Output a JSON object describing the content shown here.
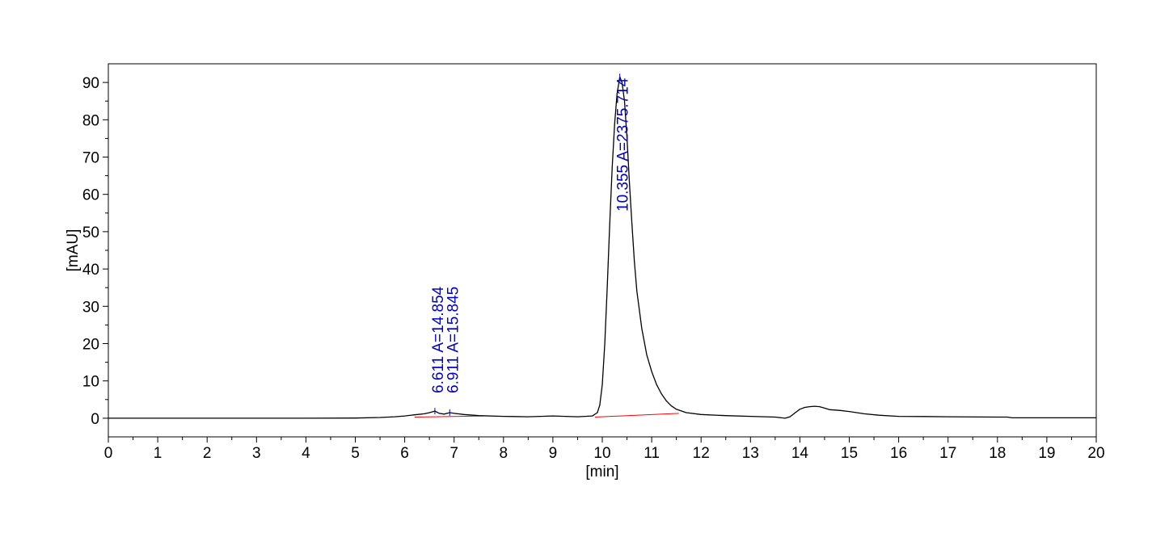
{
  "chart_data": {
    "type": "line",
    "title": "",
    "xlabel": "[min]",
    "ylabel": "[mAU]",
    "xlim": [
      0,
      20
    ],
    "ylim": [
      -5,
      95
    ],
    "x_ticks": [
      0,
      1,
      2,
      3,
      4,
      5,
      6,
      7,
      8,
      9,
      10,
      11,
      12,
      13,
      14,
      15,
      16,
      17,
      18,
      19,
      20
    ],
    "y_ticks": [
      0,
      10,
      20,
      30,
      40,
      50,
      60,
      70,
      80,
      90
    ],
    "grid": false,
    "legend": "none",
    "colors": {
      "trace": "#000000",
      "baseline": "#ff0000",
      "annotation": "#0000cc"
    },
    "series": [
      {
        "x": [
          0,
          1,
          2,
          3,
          4,
          5,
          5.5,
          5.8,
          6.0,
          6.2,
          6.4,
          6.5,
          6.611,
          6.7,
          6.8,
          6.911,
          7.0,
          7.2,
          7.5,
          8.0,
          8.5,
          9.0,
          9.5,
          9.8,
          9.9,
          9.95,
          10.0,
          10.05,
          10.1,
          10.15,
          10.2,
          10.25,
          10.3,
          10.355,
          10.4,
          10.45,
          10.5,
          10.55,
          10.6,
          10.65,
          10.7,
          10.8,
          10.9,
          11.0,
          11.1,
          11.2,
          11.3,
          11.4,
          11.5,
          11.7,
          12.0,
          12.5,
          13.0,
          13.5,
          13.7,
          13.8,
          13.9,
          14.0,
          14.1,
          14.2,
          14.3,
          14.4,
          14.5,
          14.6,
          14.8,
          15.0,
          15.3,
          15.6,
          16.0,
          16.5,
          17.0,
          18.0,
          18.2,
          18.3,
          19.0,
          20.0
        ],
        "y": [
          0.0,
          0.0,
          0.0,
          0.0,
          0.0,
          0.05,
          0.2,
          0.4,
          0.6,
          0.9,
          1.2,
          1.5,
          1.9,
          1.3,
          1.1,
          1.5,
          1.3,
          1.0,
          0.7,
          0.5,
          0.4,
          0.6,
          0.4,
          0.6,
          1.5,
          3.5,
          9,
          20,
          35,
          52,
          67,
          79,
          87,
          91.5,
          90,
          85,
          75,
          63,
          52,
          42,
          34,
          24,
          17,
          12.5,
          9,
          6.5,
          4.6,
          3.3,
          2.4,
          1.5,
          1.0,
          0.7,
          0.5,
          0.3,
          0.0,
          0.4,
          1.4,
          2.4,
          2.9,
          3.1,
          3.2,
          3.1,
          2.7,
          2.3,
          2.1,
          1.8,
          1.2,
          0.8,
          0.5,
          0.45,
          0.4,
          0.3,
          0.3,
          0.1,
          0.1,
          0.1
        ]
      }
    ],
    "baselines": [
      {
        "x": [
          6.2,
          7.6
        ],
        "y": [
          0.3,
          0.6
        ]
      },
      {
        "x": [
          9.85,
          11.55
        ],
        "y": [
          0.3,
          1.3
        ]
      }
    ],
    "peaks": [
      {
        "rt": 6.611,
        "label": "6.611 A=14.854"
      },
      {
        "rt": 6.911,
        "label": "6.911 A=15.845"
      },
      {
        "rt": 10.355,
        "label": "10.355 A=2375.714"
      }
    ]
  }
}
